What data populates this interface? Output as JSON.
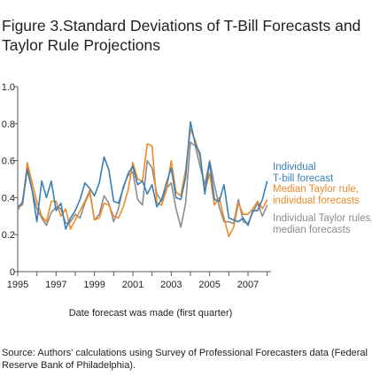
{
  "title": "Figure 3.Standard Deviations of T-Bill Forecasts and Taylor Rule Projections",
  "source": "Source: Authors' calculations using Survey of Professional Forecasters data (Federal Reserve Bank of Philadelphia).",
  "chart_data": {
    "type": "line",
    "title": "Figure 3.Standard Deviations of T-Bill Forecasts and Taylor Rule Projections",
    "xlabel": "Date forecast was made (first quarter)",
    "ylabel": "",
    "xlim": [
      1995,
      2008.2
    ],
    "ylim": [
      0,
      1.0
    ],
    "grid": false,
    "legend": "right",
    "x_ticks": [
      "1995",
      "1997",
      "1999",
      "2001",
      "2003",
      "2005",
      "2007"
    ],
    "y_ticks": [
      "0",
      "0.2",
      "0.4",
      "0.6",
      "0.8",
      "1.0"
    ],
    "x": [
      1995.0,
      1995.25,
      1995.5,
      1995.75,
      1996.0,
      1996.25,
      1996.5,
      1996.75,
      1997.0,
      1997.25,
      1997.5,
      1997.75,
      1998.0,
      1998.25,
      1998.5,
      1998.75,
      1999.0,
      1999.25,
      1999.5,
      1999.75,
      2000.0,
      2000.25,
      2000.5,
      2000.75,
      2001.0,
      2001.25,
      2001.5,
      2001.75,
      2002.0,
      2002.25,
      2002.5,
      2002.75,
      2003.0,
      2003.25,
      2003.5,
      2003.75,
      2004.0,
      2004.25,
      2004.5,
      2004.75,
      2005.0,
      2005.25,
      2005.5,
      2005.75,
      2006.0,
      2006.25,
      2006.5,
      2006.75,
      2007.0,
      2007.25,
      2007.5,
      2007.75,
      2008.0
    ],
    "series": [
      {
        "name": "Individual T-bill forecast",
        "color": "#3b7fb6",
        "values": [
          0.35,
          0.37,
          0.55,
          0.44,
          0.27,
          0.49,
          0.4,
          0.49,
          0.33,
          0.37,
          0.23,
          0.29,
          0.33,
          0.39,
          0.48,
          0.45,
          0.41,
          0.48,
          0.62,
          0.55,
          0.38,
          0.37,
          0.45,
          0.53,
          0.57,
          0.47,
          0.49,
          0.42,
          0.47,
          0.35,
          0.39,
          0.48,
          0.56,
          0.4,
          0.39,
          0.51,
          0.81,
          0.69,
          0.64,
          0.42,
          0.59,
          0.39,
          0.38,
          0.47,
          0.29,
          0.28,
          0.27,
          0.29,
          0.25,
          0.33,
          0.33,
          0.39,
          0.49
        ]
      },
      {
        "name": "Median Taylor rule, individual forecasts",
        "color": "#ee8a2a",
        "values": [
          0.35,
          0.36,
          0.59,
          0.48,
          0.38,
          0.3,
          0.27,
          0.38,
          0.38,
          0.3,
          0.34,
          0.23,
          0.28,
          0.33,
          0.38,
          0.44,
          0.28,
          0.29,
          0.37,
          0.36,
          0.3,
          0.29,
          0.35,
          0.44,
          0.59,
          0.5,
          0.49,
          0.69,
          0.68,
          0.37,
          0.36,
          0.44,
          0.6,
          0.43,
          0.41,
          0.55,
          0.77,
          0.71,
          0.62,
          0.44,
          0.53,
          0.36,
          0.4,
          0.29,
          0.19,
          0.24,
          0.37,
          0.31,
          0.31,
          0.34,
          0.38,
          0.34,
          0.39
        ]
      },
      {
        "name": "Individual Taylor rules, median forecasts",
        "color": "#8c8c8c",
        "values": [
          0.33,
          0.38,
          0.57,
          0.44,
          0.34,
          0.29,
          0.25,
          0.32,
          0.35,
          0.34,
          0.26,
          0.27,
          0.31,
          0.29,
          0.37,
          0.43,
          0.28,
          0.31,
          0.41,
          0.37,
          0.27,
          0.34,
          0.46,
          0.52,
          0.54,
          0.39,
          0.36,
          0.6,
          0.56,
          0.42,
          0.38,
          0.45,
          0.48,
          0.34,
          0.24,
          0.37,
          0.7,
          0.68,
          0.57,
          0.47,
          0.6,
          0.47,
          0.35,
          0.27,
          0.27,
          0.26,
          0.39,
          0.27,
          0.26,
          0.32,
          0.37,
          0.3,
          0.36
        ]
      }
    ],
    "legend_lines": [
      [
        "Individual",
        "T-bill forecast"
      ],
      [
        "Median Taylor rule,",
        "individual forecasts"
      ],
      [
        "Individual Taylor rules,",
        "median forecasts"
      ]
    ]
  }
}
